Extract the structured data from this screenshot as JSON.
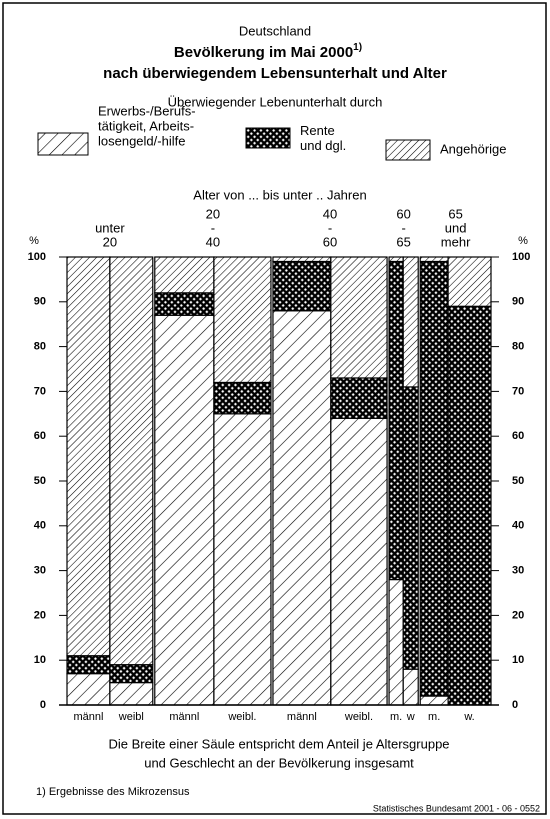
{
  "chart_data": {
    "type": "mosaic",
    "title": [
      "Deutschland",
      "Bevölkerung im Mai 2000",
      "nach überwiegendem Lebensunterhalt und Alter"
    ],
    "title_note": "1)",
    "legend_title": "Überwiegender Lebenunterhalt durch",
    "x_label": "Alter von ... bis unter .. Jahren",
    "y_label": "%",
    "groups": [
      {
        "label": [
          "unter",
          "20"
        ],
        "categories": [
          "männl",
          "weibl"
        ],
        "widths": [
          10.3,
          10.3
        ]
      },
      {
        "label": [
          "20",
          "-",
          "40"
        ],
        "categories": [
          "männl",
          "weibl."
        ],
        "widths": [
          14.2,
          13.7
        ]
      },
      {
        "label": [
          "40",
          "-",
          "60"
        ],
        "categories": [
          "männl",
          "weibl."
        ],
        "widths": [
          13.9,
          13.5
        ]
      },
      {
        "label": [
          "60",
          "-",
          "65"
        ],
        "categories": [
          "m.",
          "w"
        ],
        "widths": [
          3.4,
          3.6
        ]
      },
      {
        "label": [
          "65",
          "und",
          "mehr"
        ],
        "categories": [
          "m.",
          "w."
        ],
        "widths": [
          6.7,
          10.3
        ]
      }
    ],
    "series": [
      {
        "name": [
          "Erwerbs-/Berufs-",
          "tätigkeit, Arbeits-",
          "losengeld/-hilfe"
        ],
        "pattern": "hatch-wide",
        "color": "#000000",
        "values": [
          7,
          5,
          87,
          65,
          88,
          64,
          28,
          8,
          2,
          0
        ]
      },
      {
        "name": [
          "Rente",
          "und dgl."
        ],
        "pattern": "crosshatch",
        "color": "#000000",
        "values": [
          4,
          4,
          5,
          7,
          11,
          9,
          71,
          63,
          97,
          89
        ]
      },
      {
        "name": [
          "Angehörige"
        ],
        "pattern": "hatch-dense",
        "color": "#000000",
        "values": [
          89,
          91,
          8,
          28,
          1,
          27,
          1,
          29,
          1,
          11
        ]
      }
    ],
    "ylim": [
      0,
      100
    ],
    "yticks": [
      0,
      10,
      20,
      30,
      40,
      50,
      60,
      70,
      80,
      90,
      100
    ],
    "notes": [
      "Die Breite einer Säule entspricht dem Anteil je Altersgruppe",
      "und Geschlecht an der Bevölkerung insgesamt"
    ],
    "footnote": "1) Ergebnisse des Mikrozensus",
    "source": "Statistisches Bundesamt 2001 - 06 - 0552"
  }
}
